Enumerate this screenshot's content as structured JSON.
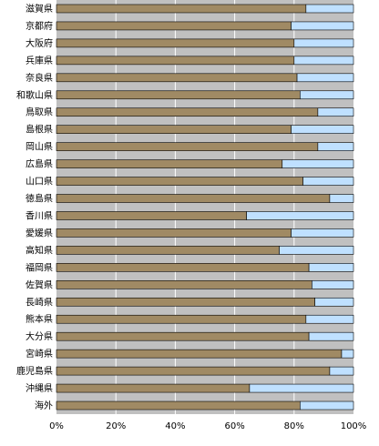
{
  "chart_data": {
    "type": "bar",
    "orientation": "horizontal",
    "stacked_percent": true,
    "categories": [
      "滋賀県",
      "京都府",
      "大阪府",
      "兵庫県",
      "奈良県",
      "和歌山県",
      "鳥取県",
      "島根県",
      "岡山県",
      "広島県",
      "山口県",
      "徳島県",
      "香川県",
      "愛媛県",
      "高知県",
      "福岡県",
      "佐賀県",
      "長崎県",
      "熊本県",
      "大分県",
      "宮崎県",
      "鹿児島県",
      "沖縄県",
      "海外"
    ],
    "series": [
      {
        "color": "#a08a64",
        "values": [
          84,
          79,
          80,
          80,
          81,
          82,
          88,
          79,
          88,
          76,
          83,
          92,
          64,
          79,
          75,
          85,
          86,
          87,
          84,
          85,
          96,
          92,
          65,
          82
        ]
      },
      {
        "color": "#bfe0ff",
        "values": [
          16,
          21,
          20,
          20,
          19,
          18,
          12,
          21,
          12,
          24,
          17,
          8,
          36,
          21,
          25,
          15,
          14,
          13,
          16,
          15,
          4,
          8,
          35,
          18
        ]
      }
    ],
    "xlim": [
      0,
      100
    ],
    "xticks": [
      "0%",
      "20%",
      "40%",
      "60%",
      "80%",
      "100%"
    ],
    "xlabel": "",
    "ylabel": "",
    "title": "",
    "grid": true,
    "background_color": "#c0c0c0",
    "gridline_color": "#ffffff"
  }
}
